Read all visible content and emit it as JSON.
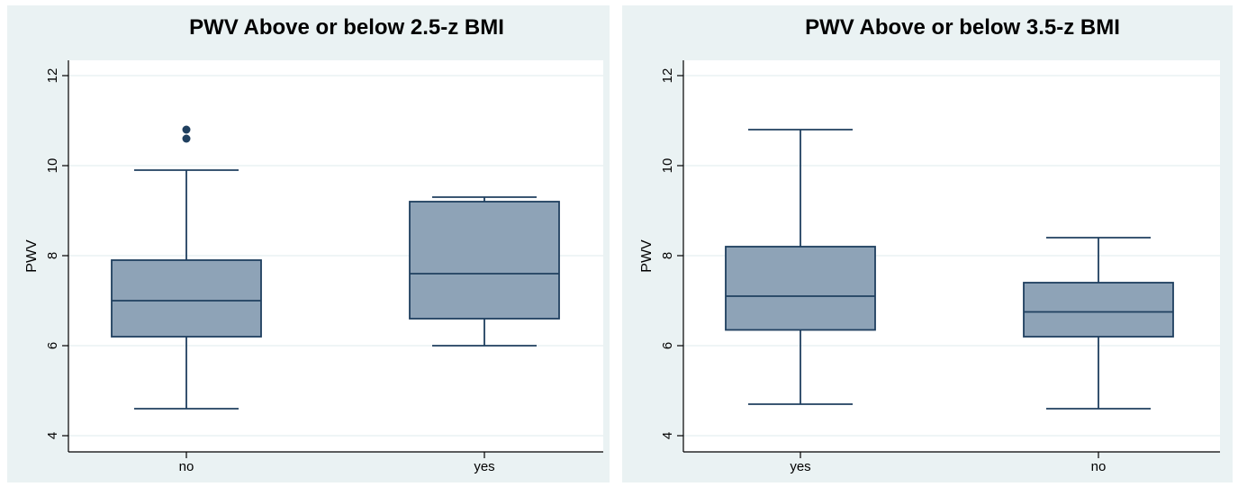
{
  "colors": {
    "box_fill": "#8ea3b7",
    "box_stroke": "#1f3f5f",
    "outlier": "#1f3f5f"
  },
  "chart_data": [
    {
      "type": "box",
      "title": "PWV Above or below 2.5-z BMI",
      "xlabel": "",
      "ylabel": "PWV",
      "ylim": [
        4,
        12
      ],
      "yticks": [
        4,
        6,
        8,
        10,
        12
      ],
      "grid": true,
      "categories": [
        "no",
        "yes"
      ],
      "boxes": [
        {
          "category": "no",
          "whisker_low": 4.6,
          "q1": 6.2,
          "median": 7.0,
          "q3": 7.9,
          "whisker_high": 9.9,
          "outliers": [
            10.6,
            10.8
          ]
        },
        {
          "category": "yes",
          "whisker_low": 6.0,
          "q1": 6.6,
          "median": 7.6,
          "q3": 9.2,
          "whisker_high": 9.3,
          "outliers": []
        }
      ]
    },
    {
      "type": "box",
      "title": "PWV Above or below 3.5-z BMI",
      "xlabel": "",
      "ylabel": "PWV",
      "ylim": [
        4,
        12
      ],
      "yticks": [
        4,
        6,
        8,
        10,
        12
      ],
      "grid": true,
      "categories": [
        "yes",
        "no"
      ],
      "boxes": [
        {
          "category": "yes",
          "whisker_low": 4.7,
          "q1": 6.35,
          "median": 7.1,
          "q3": 8.2,
          "whisker_high": 10.8,
          "outliers": []
        },
        {
          "category": "no",
          "whisker_low": 4.6,
          "q1": 6.2,
          "median": 6.75,
          "q3": 7.4,
          "whisker_high": 8.4,
          "outliers": []
        }
      ]
    }
  ]
}
